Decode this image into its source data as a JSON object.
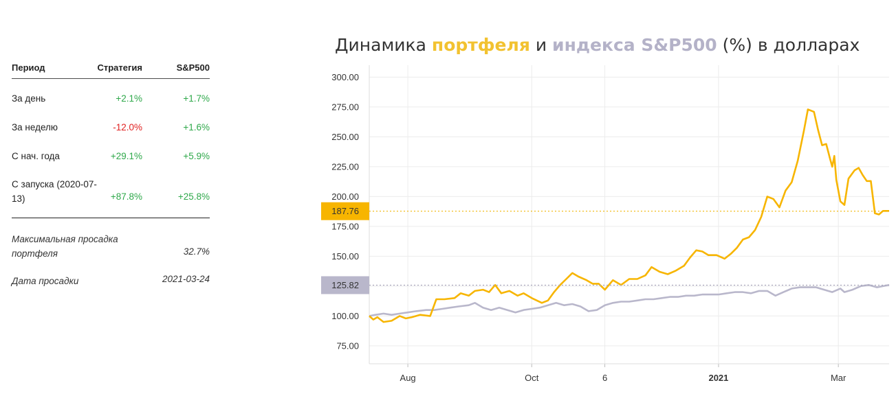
{
  "stats": {
    "headers": {
      "period": "Период",
      "strategy": "Стратегия",
      "sp500": "S&P500"
    },
    "rows": [
      {
        "label": "За день",
        "strategy": "+2.1%",
        "sp500": "+1.7%",
        "strategy_sign": "pos"
      },
      {
        "label": "За неделю",
        "strategy": "-12.0%",
        "sp500": "+1.6%",
        "strategy_sign": "neg"
      },
      {
        "label": "С нач. года",
        "strategy": "+29.1%",
        "sp500": "+5.9%",
        "strategy_sign": "pos"
      },
      {
        "label": "С запуска (2020-07-13)",
        "strategy": "+87.8%",
        "sp500": "+25.8%",
        "strategy_sign": "pos"
      }
    ],
    "max_drawdown_label": "Максимальная просадка портфеля",
    "max_drawdown_value": "32.7%",
    "drawdown_date_label": "Дата просадки",
    "drawdown_date_value": "2021-03-24"
  },
  "chart_title": {
    "part1": "Динамика ",
    "portfolio": "портфеля",
    "part2": " и ",
    "index": "индекса S&P500",
    "part3": " (%) в долларах"
  },
  "chart_data": {
    "type": "line",
    "title": "Динамика портфеля и индекса S&P500 (%) в долларах",
    "x_ticks": [
      {
        "label": "Aug",
        "date": "2020-08-01",
        "bold": false
      },
      {
        "label": "Oct",
        "date": "2020-10-01",
        "bold": false
      },
      {
        "label": "6",
        "date": "2020-11-06",
        "bold": false
      },
      {
        "label": "2021",
        "date": "2021-01-01",
        "bold": true
      },
      {
        "label": "Mar",
        "date": "2021-03-01",
        "bold": false
      }
    ],
    "x_range": [
      "2020-07-13",
      "2021-03-26"
    ],
    "y_ticks": [
      "75.00",
      "100.00",
      "125.00",
      "150.00",
      "175.00",
      "200.00",
      "225.00",
      "250.00",
      "275.00",
      "300.00"
    ],
    "ylim": [
      60,
      310
    ],
    "grid": true,
    "colors": {
      "portfolio": "#f7b500",
      "index": "#b9b7cb"
    },
    "last_values": {
      "portfolio": "187.76",
      "index": "125.82"
    },
    "series": [
      {
        "key": "portfolio",
        "points": [
          [
            "2020-07-13",
            100
          ],
          [
            "2020-07-15",
            97
          ],
          [
            "2020-07-17",
            99
          ],
          [
            "2020-07-20",
            95
          ],
          [
            "2020-07-24",
            96
          ],
          [
            "2020-07-28",
            100
          ],
          [
            "2020-07-31",
            98
          ],
          [
            "2020-08-03",
            99
          ],
          [
            "2020-08-07",
            101
          ],
          [
            "2020-08-12",
            100
          ],
          [
            "2020-08-15",
            114
          ],
          [
            "2020-08-19",
            114
          ],
          [
            "2020-08-24",
            115
          ],
          [
            "2020-08-27",
            119
          ],
          [
            "2020-08-31",
            117
          ],
          [
            "2020-09-03",
            121
          ],
          [
            "2020-09-07",
            122
          ],
          [
            "2020-09-10",
            120
          ],
          [
            "2020-09-13",
            126
          ],
          [
            "2020-09-16",
            119
          ],
          [
            "2020-09-20",
            121
          ],
          [
            "2020-09-24",
            117
          ],
          [
            "2020-09-27",
            119
          ],
          [
            "2020-10-01",
            115
          ],
          [
            "2020-10-06",
            111
          ],
          [
            "2020-10-09",
            113
          ],
          [
            "2020-10-12",
            120
          ],
          [
            "2020-10-15",
            126
          ],
          [
            "2020-10-18",
            131
          ],
          [
            "2020-10-21",
            136
          ],
          [
            "2020-10-24",
            133
          ],
          [
            "2020-10-28",
            130
          ],
          [
            "2020-10-31",
            127
          ],
          [
            "2020-11-03",
            127
          ],
          [
            "2020-11-06",
            122
          ],
          [
            "2020-11-10",
            130
          ],
          [
            "2020-11-14",
            126
          ],
          [
            "2020-11-18",
            131
          ],
          [
            "2020-11-22",
            131
          ],
          [
            "2020-11-26",
            134
          ],
          [
            "2020-11-29",
            141
          ],
          [
            "2020-12-03",
            137
          ],
          [
            "2020-12-07",
            135
          ],
          [
            "2020-12-11",
            138
          ],
          [
            "2020-12-15",
            142
          ],
          [
            "2020-12-18",
            149
          ],
          [
            "2020-12-21",
            155
          ],
          [
            "2020-12-24",
            154
          ],
          [
            "2020-12-27",
            151
          ],
          [
            "2020-12-31",
            151
          ],
          [
            "2021-01-04",
            148
          ],
          [
            "2021-01-07",
            152
          ],
          [
            "2021-01-10",
            157
          ],
          [
            "2021-01-13",
            164
          ],
          [
            "2021-01-16",
            166
          ],
          [
            "2021-01-19",
            172
          ],
          [
            "2021-01-22",
            183
          ],
          [
            "2021-01-25",
            200
          ],
          [
            "2021-01-28",
            198
          ],
          [
            "2021-01-31",
            191
          ],
          [
            "2021-02-03",
            205
          ],
          [
            "2021-02-06",
            212
          ],
          [
            "2021-02-09",
            230
          ],
          [
            "2021-02-12",
            255
          ],
          [
            "2021-02-14",
            273
          ],
          [
            "2021-02-17",
            271
          ],
          [
            "2021-02-19",
            256
          ],
          [
            "2021-02-21",
            243
          ],
          [
            "2021-02-23",
            244
          ],
          [
            "2021-02-25",
            231
          ],
          [
            "2021-02-26",
            225
          ],
          [
            "2021-02-27",
            234
          ],
          [
            "2021-02-28",
            214
          ],
          [
            "2021-03-02",
            196
          ],
          [
            "2021-03-04",
            193
          ],
          [
            "2021-03-06",
            215
          ],
          [
            "2021-03-09",
            222
          ],
          [
            "2021-03-11",
            224
          ],
          [
            "2021-03-13",
            218
          ],
          [
            "2021-03-15",
            213
          ],
          [
            "2021-03-17",
            213
          ],
          [
            "2021-03-19",
            186
          ],
          [
            "2021-03-21",
            185
          ],
          [
            "2021-03-23",
            188
          ],
          [
            "2021-03-26",
            188
          ]
        ]
      },
      {
        "key": "index",
        "points": [
          [
            "2020-07-13",
            100
          ],
          [
            "2020-07-16",
            101
          ],
          [
            "2020-07-20",
            102
          ],
          [
            "2020-07-24",
            101
          ],
          [
            "2020-07-28",
            102
          ],
          [
            "2020-08-01",
            103
          ],
          [
            "2020-08-05",
            104
          ],
          [
            "2020-08-10",
            105
          ],
          [
            "2020-08-14",
            105
          ],
          [
            "2020-08-18",
            106
          ],
          [
            "2020-08-22",
            107
          ],
          [
            "2020-08-26",
            108
          ],
          [
            "2020-08-31",
            109
          ],
          [
            "2020-09-03",
            111
          ],
          [
            "2020-09-07",
            107
          ],
          [
            "2020-09-11",
            105
          ],
          [
            "2020-09-15",
            107
          ],
          [
            "2020-09-19",
            105
          ],
          [
            "2020-09-23",
            103
          ],
          [
            "2020-09-27",
            105
          ],
          [
            "2020-10-01",
            106
          ],
          [
            "2020-10-05",
            107
          ],
          [
            "2020-10-09",
            109
          ],
          [
            "2020-10-13",
            111
          ],
          [
            "2020-10-17",
            109
          ],
          [
            "2020-10-21",
            110
          ],
          [
            "2020-10-25",
            108
          ],
          [
            "2020-10-29",
            104
          ],
          [
            "2020-11-02",
            105
          ],
          [
            "2020-11-06",
            109
          ],
          [
            "2020-11-10",
            111
          ],
          [
            "2020-11-14",
            112
          ],
          [
            "2020-11-18",
            112
          ],
          [
            "2020-11-22",
            113
          ],
          [
            "2020-11-26",
            114
          ],
          [
            "2020-11-30",
            114
          ],
          [
            "2020-12-04",
            115
          ],
          [
            "2020-12-08",
            116
          ],
          [
            "2020-12-12",
            116
          ],
          [
            "2020-12-16",
            117
          ],
          [
            "2020-12-20",
            117
          ],
          [
            "2020-12-24",
            118
          ],
          [
            "2020-12-28",
            118
          ],
          [
            "2021-01-01",
            118
          ],
          [
            "2021-01-05",
            119
          ],
          [
            "2021-01-09",
            120
          ],
          [
            "2021-01-13",
            120
          ],
          [
            "2021-01-17",
            119
          ],
          [
            "2021-01-21",
            121
          ],
          [
            "2021-01-25",
            121
          ],
          [
            "2021-01-29",
            117
          ],
          [
            "2021-02-02",
            120
          ],
          [
            "2021-02-06",
            123
          ],
          [
            "2021-02-10",
            124
          ],
          [
            "2021-02-14",
            124
          ],
          [
            "2021-02-18",
            124
          ],
          [
            "2021-02-22",
            122
          ],
          [
            "2021-02-26",
            120
          ],
          [
            "2021-03-02",
            123
          ],
          [
            "2021-03-04",
            120
          ],
          [
            "2021-03-08",
            122
          ],
          [
            "2021-03-12",
            125
          ],
          [
            "2021-03-16",
            126
          ],
          [
            "2021-03-20",
            124
          ],
          [
            "2021-03-23",
            125
          ],
          [
            "2021-03-26",
            126
          ]
        ]
      }
    ]
  }
}
